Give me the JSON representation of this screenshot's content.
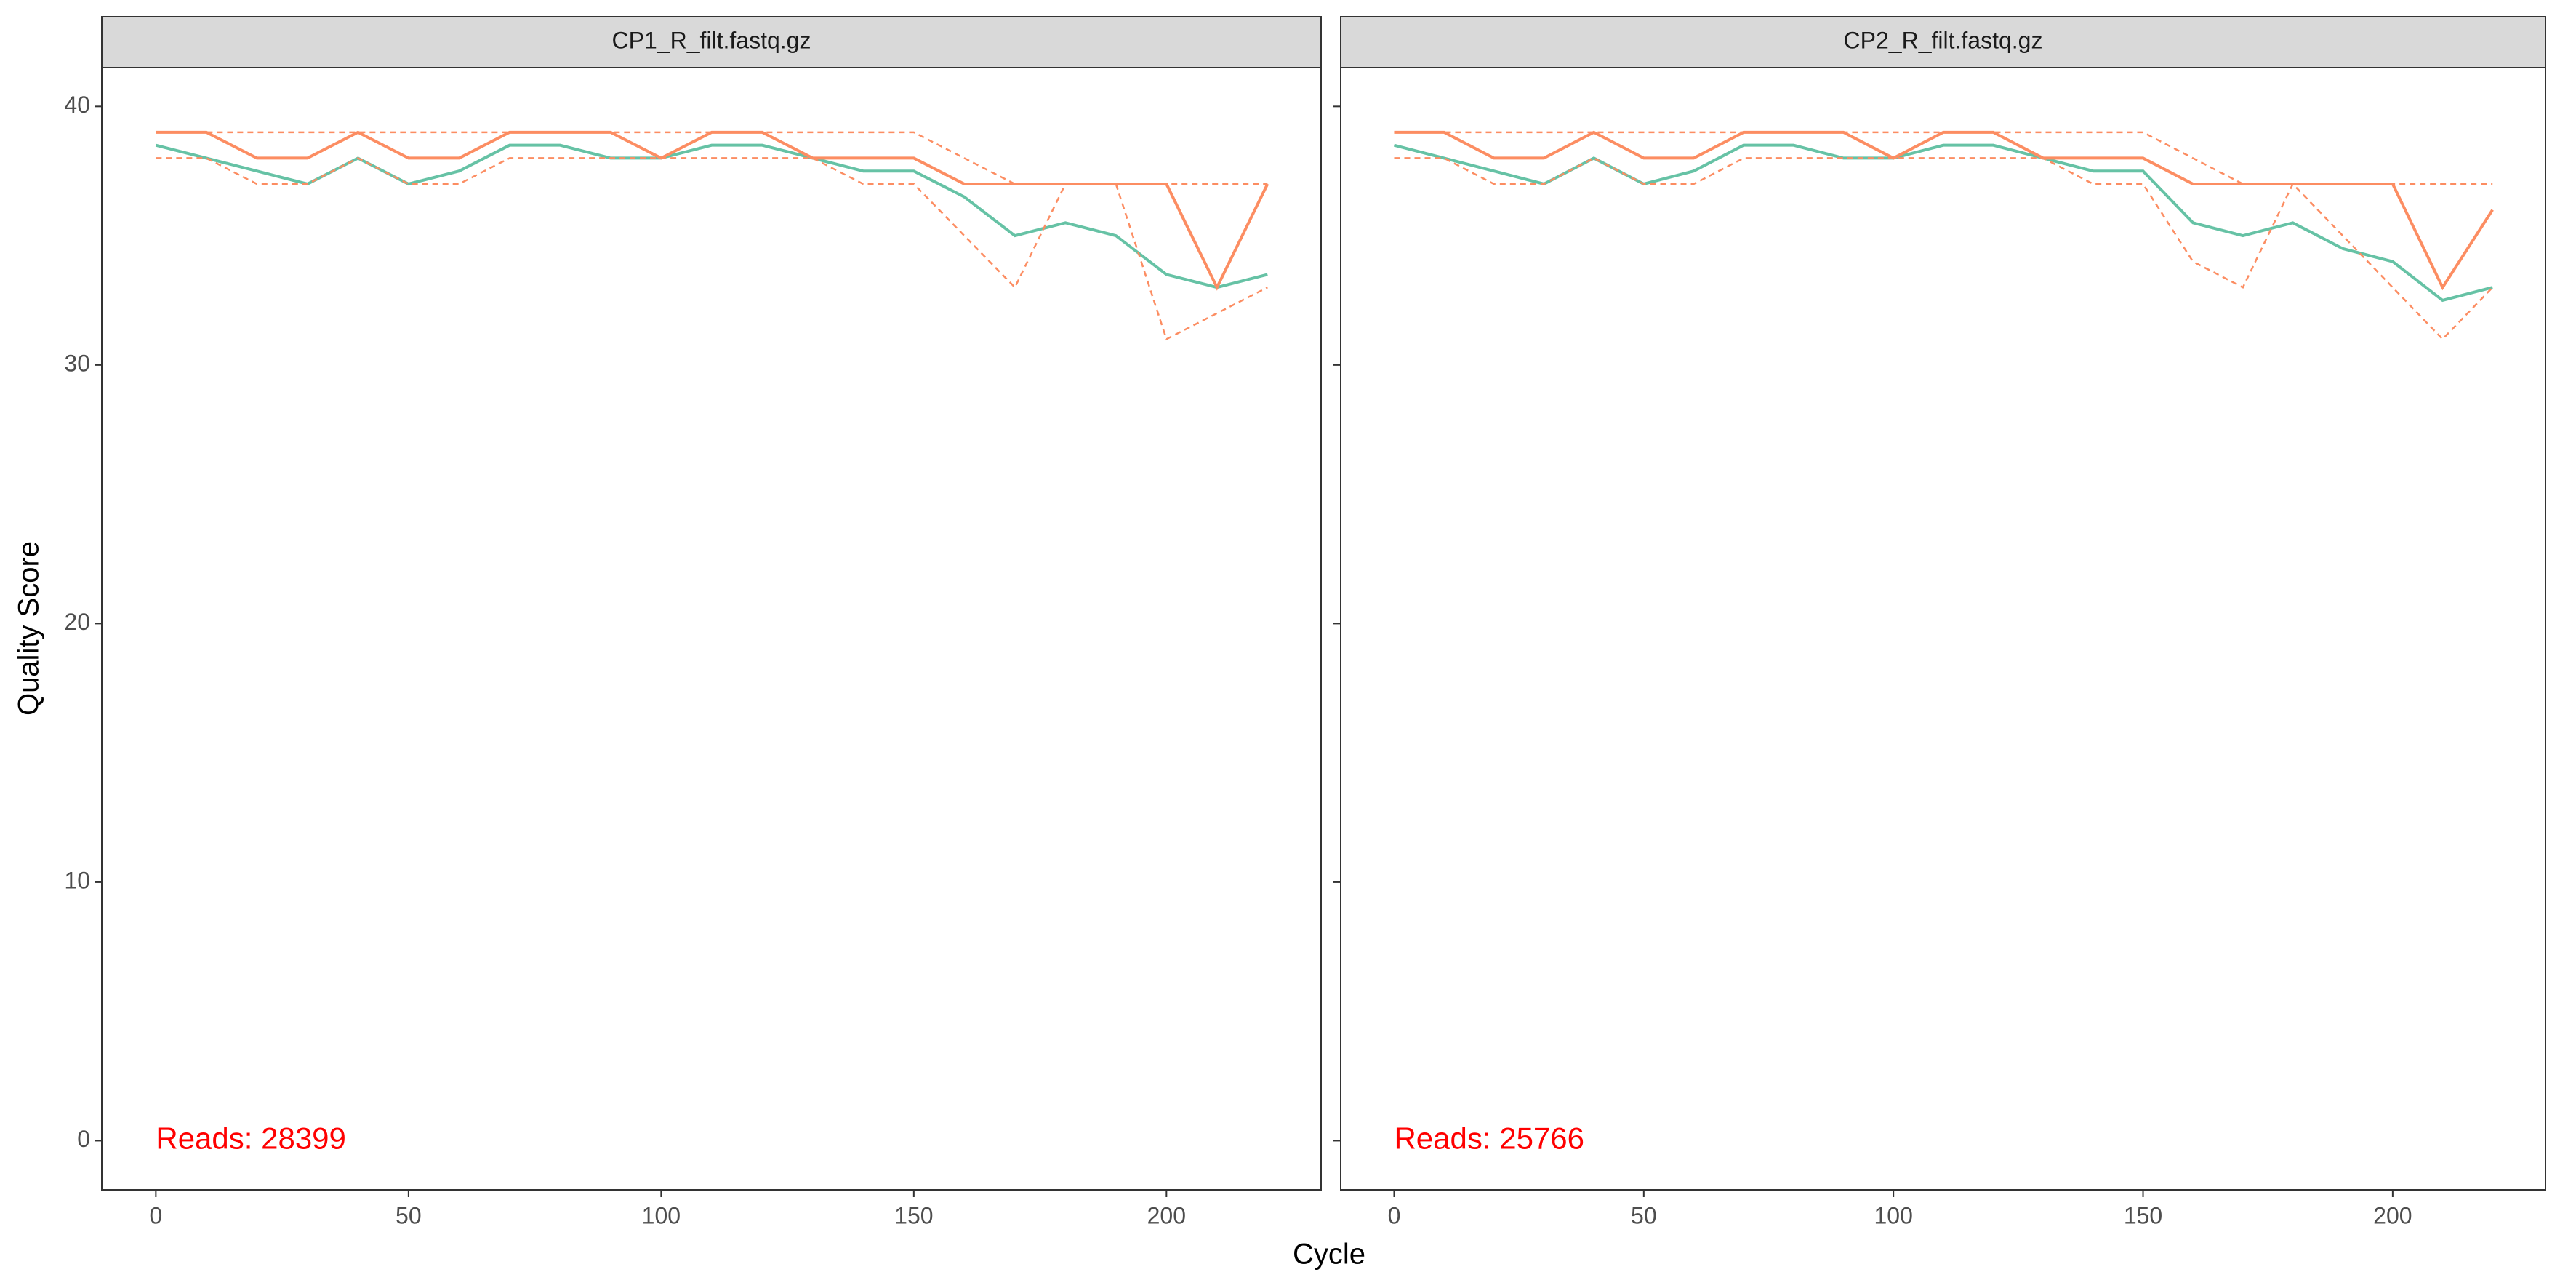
{
  "chart_data": [
    {
      "type": "line",
      "title": "CP1_R_filt.fastq.gz",
      "annotation": "Reads:  28399",
      "xlabel": "Cycle",
      "ylabel": "Quality Score",
      "x": [
        0,
        10,
        20,
        30,
        40,
        50,
        60,
        70,
        80,
        90,
        100,
        110,
        120,
        130,
        140,
        150,
        160,
        170,
        180,
        190,
        200,
        210,
        220
      ],
      "series": [
        {
          "color": "#66c2a5",
          "dash": false,
          "values": [
            38.5,
            38,
            37.5,
            37,
            38,
            37,
            37.5,
            38.5,
            38.5,
            38,
            38,
            38.5,
            38.5,
            38,
            37.5,
            37.5,
            36.5,
            35,
            35.5,
            35,
            33.5,
            33,
            33.5
          ]
        },
        {
          "color": "#fc8d62",
          "dash": false,
          "values": [
            39,
            39,
            38,
            38,
            39,
            38,
            38,
            39,
            39,
            39,
            38,
            39,
            39,
            38,
            38,
            38,
            37,
            37,
            37,
            37,
            37,
            33,
            37
          ]
        },
        {
          "color": "#fc8d62",
          "dash": true,
          "values": [
            38,
            38,
            37,
            37,
            38,
            37,
            37,
            38,
            38,
            38,
            38,
            38,
            38,
            38,
            37,
            37,
            35,
            33,
            37,
            37,
            31,
            32,
            33
          ]
        },
        {
          "color": "#fc8d62",
          "dash": true,
          "values": [
            39,
            39,
            39,
            39,
            39,
            39,
            39,
            39,
            39,
            39,
            39,
            39,
            39,
            39,
            39,
            39,
            38,
            37,
            37,
            37,
            37,
            37,
            37
          ]
        }
      ],
      "xlim": [
        -10.7,
        230.6
      ],
      "ylim": [
        -1.9,
        41.5
      ],
      "xticks": [
        0,
        50,
        100,
        150,
        200
      ],
      "yticks": [
        0,
        10,
        20,
        30,
        40
      ]
    },
    {
      "type": "line",
      "title": "CP2_R_filt.fastq.gz",
      "annotation": "Reads:  25766",
      "x": [
        0,
        10,
        20,
        30,
        40,
        50,
        60,
        70,
        80,
        90,
        100,
        110,
        120,
        130,
        140,
        150,
        160,
        170,
        180,
        190,
        200,
        210,
        220
      ],
      "series": [
        {
          "color": "#66c2a5",
          "dash": false,
          "values": [
            38.5,
            38,
            37.5,
            37,
            38,
            37,
            37.5,
            38.5,
            38.5,
            38,
            38,
            38.5,
            38.5,
            38,
            37.5,
            37.5,
            35.5,
            35,
            35.5,
            34.5,
            34,
            32.5,
            33
          ]
        },
        {
          "color": "#fc8d62",
          "dash": false,
          "values": [
            39,
            39,
            38,
            38,
            39,
            38,
            38,
            39,
            39,
            39,
            38,
            39,
            39,
            38,
            38,
            38,
            37,
            37,
            37,
            37,
            37,
            33,
            36
          ]
        },
        {
          "color": "#fc8d62",
          "dash": true,
          "values": [
            38,
            38,
            37,
            37,
            38,
            37,
            37,
            38,
            38,
            38,
            38,
            38,
            38,
            38,
            37,
            37,
            34,
            33,
            37,
            35,
            33,
            31,
            33
          ]
        },
        {
          "color": "#fc8d62",
          "dash": true,
          "values": [
            39,
            39,
            39,
            39,
            39,
            39,
            39,
            39,
            39,
            39,
            39,
            39,
            39,
            39,
            39,
            39,
            38,
            37,
            37,
            37,
            37,
            37,
            37
          ]
        }
      ],
      "xlim": [
        -10.7,
        230.6
      ],
      "ylim": [
        -1.9,
        41.5
      ],
      "xticks": [
        0,
        50,
        100,
        150,
        200
      ],
      "yticks": [
        0,
        10,
        20,
        30,
        40
      ]
    }
  ]
}
